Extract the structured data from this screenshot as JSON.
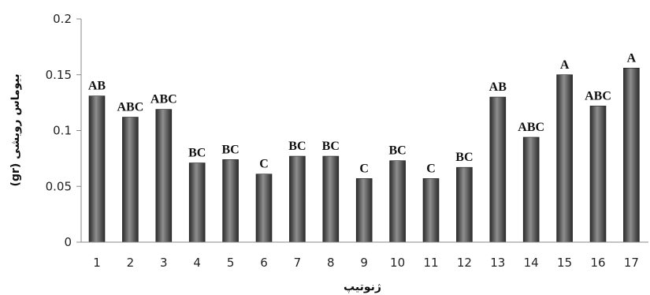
{
  "chart_data": {
    "type": "bar",
    "title": "",
    "xlabel": "ژنوتیپ",
    "ylabel": "بیوماس رویشی (gr)",
    "ylim": [
      0,
      0.2
    ],
    "yticks": [
      0,
      0.05,
      0.1,
      0.15,
      0.2
    ],
    "ytick_labels": [
      "0",
      "0.05",
      "0.1",
      "0.15",
      "0.2"
    ],
    "grid": false,
    "legend": "none",
    "categories": [
      "1",
      "2",
      "3",
      "4",
      "5",
      "6",
      "7",
      "8",
      "9",
      "10",
      "11",
      "12",
      "13",
      "14",
      "15",
      "16",
      "17"
    ],
    "values": [
      0.131,
      0.112,
      0.119,
      0.071,
      0.074,
      0.061,
      0.077,
      0.077,
      0.057,
      0.073,
      0.057,
      0.067,
      0.13,
      0.094,
      0.15,
      0.122,
      0.156
    ],
    "data_labels": [
      "AB",
      "ABC",
      "ABC",
      "BC",
      "BC",
      "C",
      "BC",
      "BC",
      "C",
      "BC",
      "C",
      "BC",
      "AB",
      "ABC",
      "A",
      "ABC",
      "A"
    ],
    "colors": {
      "bar_dark": "#2b2b2b",
      "bar_light": "#8f8f8f",
      "axis": "#888888"
    }
  }
}
